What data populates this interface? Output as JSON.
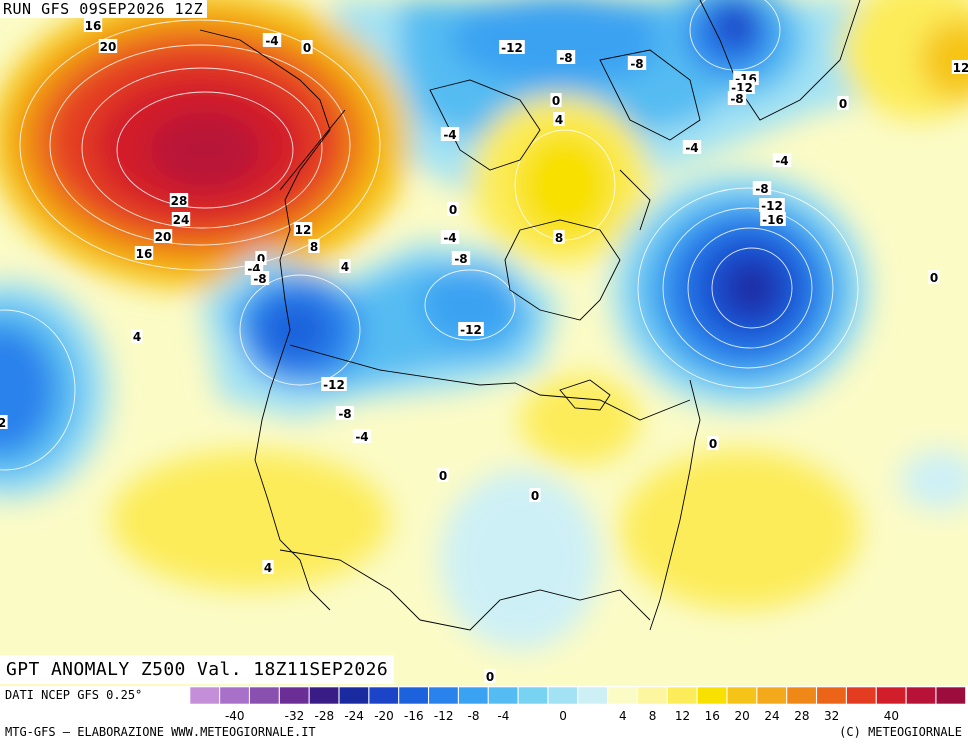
{
  "header": {
    "run": "RUN GFS 09SEP2026 12Z",
    "title": "GPT ANOMALY Z500 Val. 18Z11SEP2026"
  },
  "footer": {
    "source": "DATI NCEP GFS 0.25°",
    "credit": "MTG-GFS — ELABORAZIONE WWW.METEOGIORNALE.IT",
    "copyright": "(C) METEOGIORNALE"
  },
  "colorbar": {
    "tick_labels": [
      "-40",
      "-32",
      "-28",
      "-24",
      "-20",
      "-16",
      "-12",
      "-8",
      "-4",
      "0",
      "4",
      "8",
      "12",
      "16",
      "20",
      "24",
      "28",
      "32",
      "40"
    ],
    "colors": [
      "#c58ed8",
      "#a870c8",
      "#8a50b0",
      "#6a2e96",
      "#3a1c86",
      "#1a2aa0",
      "#1c44c8",
      "#1c62dc",
      "#2a82ec",
      "#3aa2f2",
      "#54bcf2",
      "#78d2f2",
      "#a2e2f4",
      "#cdf0f6",
      "#fbfbc6",
      "#fcf6a0",
      "#fcec5a",
      "#f8e000",
      "#f6c418",
      "#f4a81c",
      "#f08818",
      "#ec6418",
      "#e43c20",
      "#d21e2a",
      "#b81238",
      "#9c0c3c"
    ]
  },
  "map": {
    "contour_labels": [
      {
        "id": "lbl-16-nw",
        "text": "16"
      },
      {
        "id": "lbl-20-nw",
        "text": "20"
      },
      {
        "id": "lbl-m4-alaska",
        "text": "-4"
      },
      {
        "id": "lbl-0-yukon",
        "text": "0"
      },
      {
        "id": "lbl-m12-arctic",
        "text": "-12"
      },
      {
        "id": "lbl-m8-arctic",
        "text": "-8"
      },
      {
        "id": "lbl-m8-greenland",
        "text": "-8"
      },
      {
        "id": "lbl-m16-greenland",
        "text": "-16"
      },
      {
        "id": "lbl-m12-greenland",
        "text": "-12"
      },
      {
        "id": "lbl-m8-greenland2",
        "text": "-8"
      },
      {
        "id": "lbl-12-east",
        "text": "12"
      },
      {
        "id": "lbl-0-atlantic-n",
        "text": "0"
      },
      {
        "id": "lbl-0-baffin",
        "text": "0"
      },
      {
        "id": "lbl-4-baffin",
        "text": "4"
      },
      {
        "id": "lbl-m4-arctic2",
        "text": "-4"
      },
      {
        "id": "lbl-m4-davis",
        "text": "-4"
      },
      {
        "id": "lbl-m4-labrador",
        "text": "-4"
      },
      {
        "id": "lbl-m8-labrador",
        "text": "-8"
      },
      {
        "id": "lbl-m12-labrador",
        "text": "-12"
      },
      {
        "id": "lbl-m16-labrador",
        "text": "-16"
      },
      {
        "id": "lbl-0-atlantic",
        "text": "0"
      },
      {
        "id": "lbl-28-gulf",
        "text": "28"
      },
      {
        "id": "lbl-24-gulf",
        "text": "24"
      },
      {
        "id": "lbl-20-gulf",
        "text": "20"
      },
      {
        "id": "lbl-16-gulf",
        "text": "16"
      },
      {
        "id": "lbl-12-bc",
        "text": "12"
      },
      {
        "id": "lbl-8-bc",
        "text": "8"
      },
      {
        "id": "lbl-0-bc",
        "text": "0"
      },
      {
        "id": "lbl-m4-bc",
        "text": "-4"
      },
      {
        "id": "lbl-m8-bc",
        "text": "-8"
      },
      {
        "id": "lbl-4-alberta",
        "text": "4"
      },
      {
        "id": "lbl-0-nwt",
        "text": "0"
      },
      {
        "id": "lbl-m4-sask",
        "text": "-4"
      },
      {
        "id": "lbl-m8-manitoba",
        "text": "-8"
      },
      {
        "id": "lbl-8-hudson",
        "text": "8"
      },
      {
        "id": "lbl-m12-dakota",
        "text": "-12"
      },
      {
        "id": "lbl-4-pacific",
        "text": "4"
      },
      {
        "id": "lbl-m12-oregon",
        "text": "-12"
      },
      {
        "id": "lbl-m8-nevada",
        "text": "-8"
      },
      {
        "id": "lbl-m4-utah",
        "text": "-4"
      },
      {
        "id": "lbl-0-kansas",
        "text": "0"
      },
      {
        "id": "lbl-0-texas",
        "text": "0"
      },
      {
        "id": "lbl-0-nj",
        "text": "0"
      },
      {
        "id": "lbl-4-baja",
        "text": "4"
      },
      {
        "id": "lbl-0-yucatan",
        "text": "0"
      },
      {
        "id": "lbl-2-west",
        "text": "2"
      }
    ]
  }
}
